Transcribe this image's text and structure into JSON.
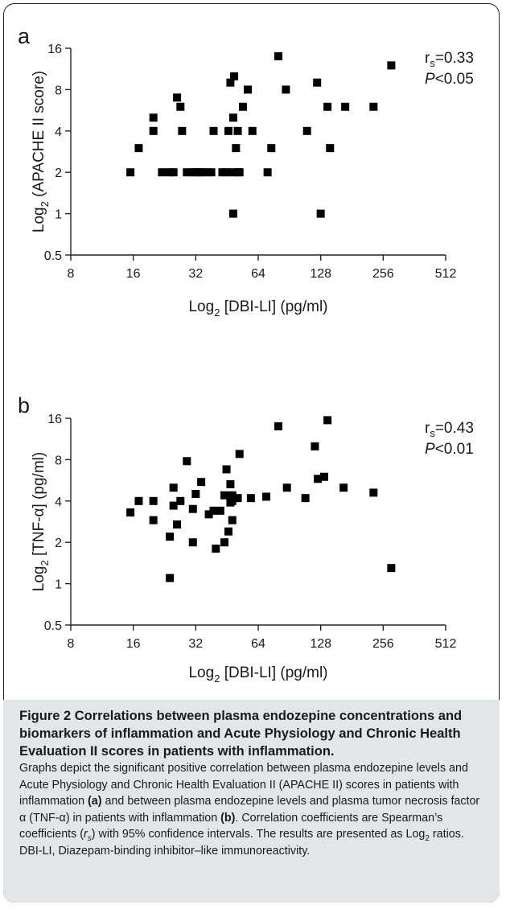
{
  "chart_data": [
    {
      "type": "scatter",
      "panel_label": "a",
      "x_scale": "log2",
      "y_scale": "log2",
      "xlim": [
        8,
        512
      ],
      "ylim": [
        0.5,
        16
      ],
      "x_ticks": [
        "8",
        "16",
        "32",
        "64",
        "128",
        "256",
        "512"
      ],
      "y_ticks": [
        "0.5",
        "1",
        "2",
        "4",
        "8",
        "16"
      ],
      "xlabel_main": "Log",
      "xlabel_sub": "2",
      "xlabel_rest": " [DBI-LI] (pg/ml)",
      "ylabel_main": "Log",
      "ylabel_sub": "2",
      "ylabel_rest": " (APACHE II score)",
      "stat_r_prefix": "r",
      "stat_r_sub": "s",
      "stat_r_value": "=0.33",
      "stat_p_italic": "P",
      "stat_p_value": "<0.05",
      "points": [
        [
          15.5,
          2
        ],
        [
          17,
          3
        ],
        [
          20,
          4
        ],
        [
          20,
          5
        ],
        [
          22,
          2
        ],
        [
          24,
          2
        ],
        [
          25,
          2
        ],
        [
          26,
          7
        ],
        [
          27,
          6
        ],
        [
          27.5,
          4
        ],
        [
          29,
          2
        ],
        [
          31,
          2
        ],
        [
          32,
          2
        ],
        [
          33,
          2
        ],
        [
          34,
          2
        ],
        [
          36,
          2
        ],
        [
          38,
          2
        ],
        [
          39,
          4
        ],
        [
          43,
          2
        ],
        [
          45,
          2
        ],
        [
          46,
          4
        ],
        [
          47,
          9
        ],
        [
          48,
          2
        ],
        [
          48.5,
          5
        ],
        [
          48.5,
          1
        ],
        [
          49,
          10
        ],
        [
          50,
          3
        ],
        [
          51,
          4
        ],
        [
          51,
          2
        ],
        [
          52,
          2
        ],
        [
          54,
          6
        ],
        [
          57,
          8
        ],
        [
          60,
          4
        ],
        [
          71,
          2
        ],
        [
          74,
          3
        ],
        [
          80,
          14
        ],
        [
          87,
          8
        ],
        [
          110,
          4
        ],
        [
          123,
          9
        ],
        [
          128,
          1
        ],
        [
          138,
          6
        ],
        [
          142,
          3
        ],
        [
          168,
          6
        ],
        [
          230,
          6
        ],
        [
          280,
          12
        ]
      ]
    },
    {
      "type": "scatter",
      "panel_label": "b",
      "x_scale": "log2",
      "y_scale": "log2",
      "xlim": [
        8,
        512
      ],
      "ylim": [
        0.5,
        16
      ],
      "x_ticks": [
        "8",
        "16",
        "32",
        "64",
        "128",
        "256",
        "512"
      ],
      "y_ticks": [
        "0.5",
        "1",
        "2",
        "4",
        "8",
        "16"
      ],
      "xlabel_main": "Log",
      "xlabel_sub": "2",
      "xlabel_rest": " [DBI-LI] (pg/ml)",
      "ylabel_main": "Log",
      "ylabel_sub": "2",
      "ylabel_rest": " [TNF-α] (pg/ml)",
      "stat_r_prefix": "r",
      "stat_r_sub": "s",
      "stat_r_value": "=0.43",
      "stat_p_italic": "P",
      "stat_p_value": "<0.01",
      "points": [
        [
          15.5,
          3.3
        ],
        [
          17,
          4
        ],
        [
          20,
          4
        ],
        [
          20,
          2.9
        ],
        [
          24,
          2.2
        ],
        [
          24,
          1.1
        ],
        [
          25,
          3.7
        ],
        [
          25,
          5
        ],
        [
          26,
          2.7
        ],
        [
          27,
          4
        ],
        [
          29,
          7.8
        ],
        [
          31,
          3.5
        ],
        [
          31,
          2
        ],
        [
          32,
          4.5
        ],
        [
          34,
          5.5
        ],
        [
          37,
          3.2
        ],
        [
          39,
          3.4
        ],
        [
          40,
          1.8
        ],
        [
          42,
          3.4
        ],
        [
          44,
          2
        ],
        [
          44,
          4.4
        ],
        [
          45,
          6.8
        ],
        [
          46,
          2.4
        ],
        [
          47,
          3.9
        ],
        [
          47,
          5.3
        ],
        [
          48,
          4.4
        ],
        [
          48,
          4
        ],
        [
          48,
          2.9
        ],
        [
          51,
          4.2
        ],
        [
          52,
          8.8
        ],
        [
          59,
          4.2
        ],
        [
          70,
          4.3
        ],
        [
          80,
          14
        ],
        [
          88,
          5
        ],
        [
          108,
          4.2
        ],
        [
          120,
          10
        ],
        [
          124,
          5.8
        ],
        [
          133,
          6
        ],
        [
          138,
          15.5
        ],
        [
          165,
          5
        ],
        [
          230,
          4.6
        ],
        [
          280,
          1.3
        ]
      ]
    }
  ],
  "caption": {
    "title": "Figure 2 Correlations between plasma endozepine concentrations and biomarkers of inflammation and Acute Physiology and Chronic Health Evaluation II scores in patients with inflammation.",
    "body_1": " Graphs depict the significant positive correlation between plasma endozepine levels and Acute Physiology and Chronic Health Evaluation II (APACHE II) scores in patients with inflammation ",
    "ref_a": "(a)",
    "body_2": " and between plasma endozepine levels and plasma tumor necrosis factor α (TNF-α) in patients with inflammation ",
    "ref_b": "(b)",
    "body_3": ". Correlation coefficients are Spearman’s coefficients (",
    "rs_r": "r",
    "rs_s": "s",
    "body_4": ") with 95% confidence intervals. The results are presented as Log",
    "log_sub": "2",
    "body_5": " ratios. DBI-LI, Diazepam-binding inhibitor–like immunoreactivity."
  }
}
